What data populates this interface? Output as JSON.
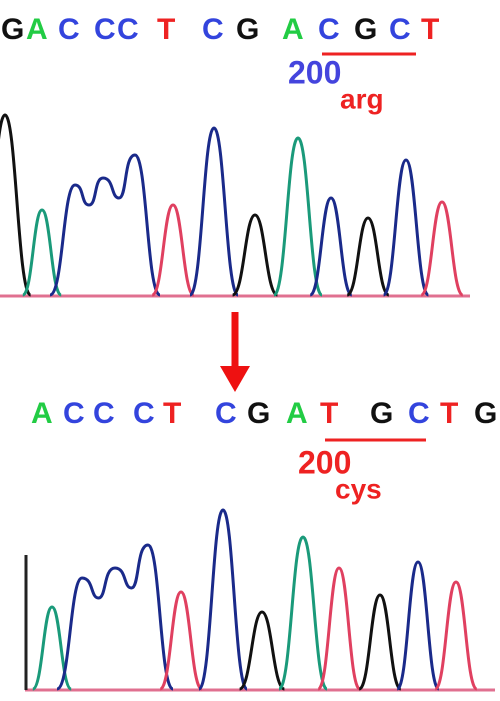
{
  "base_colors": {
    "A": "#22cc44",
    "C": "#3344dd",
    "G": "#111111",
    "T": "#ee2222"
  },
  "top": {
    "bases": [
      "G",
      "A",
      "C",
      "C",
      "C",
      "T",
      "C",
      "G",
      "A",
      "C",
      "G",
      "C",
      "T"
    ],
    "position": "200",
    "residue": "arg"
  },
  "bottom": {
    "bases": [
      "A",
      "C",
      "C",
      "C",
      "T",
      "C",
      "G",
      "A",
      "T",
      "G",
      "C",
      "T",
      "G"
    ],
    "position": "200",
    "residue": "cys"
  }
}
